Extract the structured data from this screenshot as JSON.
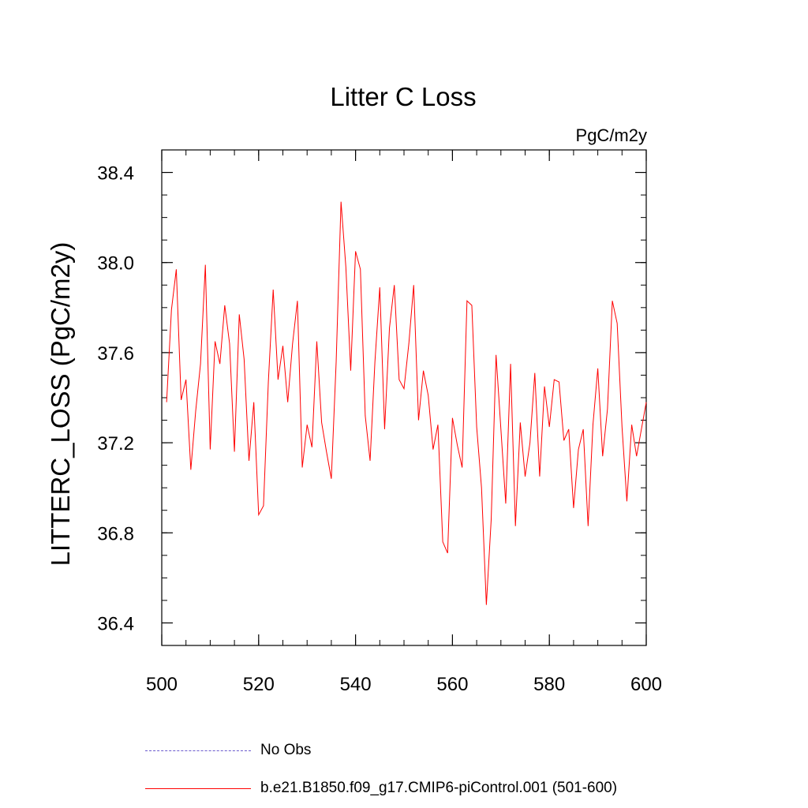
{
  "chart_data": {
    "type": "line",
    "title": "Litter C Loss",
    "units_label": "PgC/m2y",
    "ylabel": "LITTERC_LOSS  (PgC/m2y)",
    "xlabel": "",
    "xlim": [
      500,
      600
    ],
    "ylim": [
      36.3,
      38.5
    ],
    "x_ticks": [
      "500",
      "520",
      "540",
      "560",
      "580",
      "600"
    ],
    "y_ticks": [
      "36.4",
      "36.8",
      "37.2",
      "37.6",
      "38.0",
      "38.4"
    ],
    "x_tick_values": [
      500,
      520,
      540,
      560,
      580,
      600
    ],
    "y_tick_values": [
      36.4,
      36.8,
      37.2,
      37.6,
      38.0,
      38.4
    ],
    "x_minor_step": 5,
    "y_minor_step": 0.1,
    "grid": false,
    "legend_position": "bottom",
    "series": [
      {
        "name": "b.e21.B1850.f09_g17.CMIP6-piControl.001 (501-600)",
        "color": "#ff0000",
        "style": "solid",
        "x": [
          501,
          502,
          503,
          504,
          505,
          506,
          507,
          508,
          509,
          510,
          511,
          512,
          513,
          514,
          515,
          516,
          517,
          518,
          519,
          520,
          521,
          522,
          523,
          524,
          525,
          526,
          527,
          528,
          529,
          530,
          531,
          532,
          533,
          534,
          535,
          536,
          537,
          538,
          539,
          540,
          541,
          542,
          543,
          544,
          545,
          546,
          547,
          548,
          549,
          550,
          551,
          552,
          553,
          554,
          555,
          556,
          557,
          558,
          559,
          560,
          561,
          562,
          563,
          564,
          565,
          566,
          567,
          568,
          569,
          570,
          571,
          572,
          573,
          574,
          575,
          576,
          577,
          578,
          579,
          580,
          581,
          582,
          583,
          584,
          585,
          586,
          587,
          588,
          589,
          590,
          591,
          592,
          593,
          594,
          595,
          596,
          597,
          598,
          599,
          600
        ],
        "values": [
          37.38,
          37.79,
          37.97,
          37.39,
          37.48,
          37.08,
          37.34,
          37.55,
          37.99,
          37.17,
          37.65,
          37.55,
          37.81,
          37.64,
          37.16,
          37.77,
          37.57,
          37.12,
          37.38,
          36.88,
          36.92,
          37.47,
          37.88,
          37.48,
          37.63,
          37.38,
          37.64,
          37.83,
          37.09,
          37.28,
          37.18,
          37.65,
          37.29,
          37.16,
          37.04,
          37.56,
          38.27,
          37.98,
          37.52,
          38.05,
          37.97,
          37.32,
          37.12,
          37.56,
          37.89,
          37.26,
          37.71,
          37.9,
          37.48,
          37.44,
          37.64,
          37.9,
          37.3,
          37.52,
          37.41,
          37.17,
          37.28,
          36.76,
          36.71,
          37.31,
          37.19,
          37.09,
          37.83,
          37.81,
          37.27,
          37.0,
          36.48,
          36.86,
          37.59,
          37.26,
          36.93,
          37.55,
          36.83,
          37.29,
          37.05,
          37.2,
          37.51,
          37.05,
          37.45,
          37.27,
          37.48,
          37.47,
          37.21,
          37.26,
          36.91,
          37.17,
          37.26,
          36.83,
          37.28,
          37.53,
          37.14,
          37.35,
          37.83,
          37.73,
          37.27,
          36.94,
          37.28,
          37.14,
          37.26,
          37.38
        ]
      }
    ]
  },
  "legend": {
    "items": [
      {
        "label": "No Obs",
        "color": "#6a5acd",
        "style": "dashed"
      },
      {
        "label": "b.e21.B1850.f09_g17.CMIP6-piControl.001 (501-600)",
        "color": "#ff0000",
        "style": "solid"
      }
    ]
  }
}
